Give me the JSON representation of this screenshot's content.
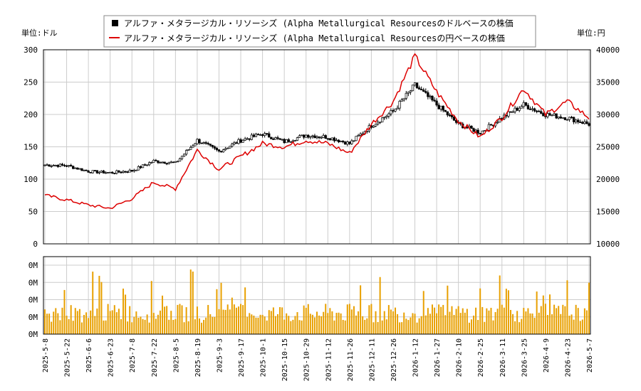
{
  "chart_data": [
    {
      "type": "candlestick+line",
      "legend": [
        {
          "label": "アルファ・メタラージカル・リソーシズ (Alpha Metallurgical Resourcesのドルベースの株価",
          "color": "#000000",
          "marker": "square"
        },
        {
          "label": "アルファ・メタラージカル・リソーシズ (Alpha Metallurgical Resourcesの円ベースの株価",
          "color": "#dd0000",
          "marker": "line"
        }
      ],
      "left_unit": "単位:ドル",
      "right_unit": "単位:円",
      "y_left_ticks": [
        "0",
        "50",
        "100",
        "150",
        "200",
        "250",
        "300"
      ],
      "y_left_range": [
        0,
        300
      ],
      "y_right_ticks": [
        "10000",
        "15000",
        "20000",
        "25000",
        "30000",
        "35000",
        "40000"
      ],
      "y_right_range": [
        10000,
        40000
      ],
      "grid": true,
      "usd_series": {
        "name": "アルファ・メタラージカル・リソーシズ (Alpha Metallurgical Resourcesのドルベースの株価",
        "x": [
          "2025-05-08",
          "2025-05-22",
          "2025-06-06",
          "2025-06-23",
          "2025-07-08",
          "2025-07-22",
          "2025-08-05",
          "2025-08-19",
          "2025-09-03",
          "2025-09-17",
          "2025-10-01",
          "2025-10-15",
          "2025-10-29",
          "2025-11-12",
          "2025-11-26",
          "2025-12-11",
          "2025-12-26",
          "2026-01-12",
          "2026-01-27",
          "2026-02-10",
          "2026-02-25",
          "2026-03-11",
          "2026-03-25",
          "2026-04-09",
          "2026-04-23",
          "2026-05-07"
        ],
        "close": [
          122,
          121,
          112,
          110,
          113,
          128,
          125,
          160,
          143,
          160,
          170,
          158,
          168,
          165,
          155,
          183,
          205,
          245,
          215,
          185,
          172,
          195,
          215,
          200,
          195,
          185
        ]
      },
      "jpy_series": {
        "name": "アルファ・メタラージカル・リソーシズ (Alpha Metallurgical Resourcesの円ベースの株価",
        "x": [
          "2025-05-08",
          "2025-05-22",
          "2025-06-06",
          "2025-06-23",
          "2025-07-08",
          "2025-07-22",
          "2025-08-05",
          "2025-08-19",
          "2025-09-03",
          "2025-09-17",
          "2025-10-01",
          "2025-10-15",
          "2025-10-29",
          "2025-11-12",
          "2025-11-26",
          "2025-12-11",
          "2025-12-26",
          "2026-01-12",
          "2026-01-27",
          "2026-02-10",
          "2026-02-25",
          "2026-03-11",
          "2026-03-25",
          "2026-04-09",
          "2026-04-23",
          "2026-05-07"
        ],
        "values": [
          17500,
          16800,
          16000,
          15500,
          17000,
          19500,
          18500,
          24500,
          21500,
          23500,
          25500,
          25000,
          26000,
          25500,
          24000,
          28500,
          32000,
          39000,
          33500,
          29000,
          26500,
          29500,
          34000,
          30000,
          32000,
          29500
        ]
      },
      "volume_axis_ticks": [
        "0M",
        "0M",
        "0M",
        "0M",
        "0M"
      ],
      "volume_note": "volume bars shown in orange; exact values not labeled",
      "x_tick_labels": [
        "2025-5-8",
        "2025-5-22",
        "2025-6-6",
        "2025-6-23",
        "2025-7-8",
        "2025-7-22",
        "2025-8-5",
        "2025-8-19",
        "2025-9-3",
        "2025-9-17",
        "2025-10-1",
        "2025-10-15",
        "2025-10-29",
        "2025-11-12",
        "2025-11-26",
        "2025-12-11",
        "2025-12-26",
        "2026-1-12",
        "2026-1-27",
        "2026-2-10",
        "2026-2-25",
        "2026-3-11",
        "2026-3-25",
        "2026-4-9",
        "2026-4-23",
        "2026-5-7"
      ]
    }
  ],
  "colors": {
    "usd": "#000000",
    "jpy": "#dd0000",
    "volume": "#e8a000",
    "grid": "#cccccc"
  }
}
